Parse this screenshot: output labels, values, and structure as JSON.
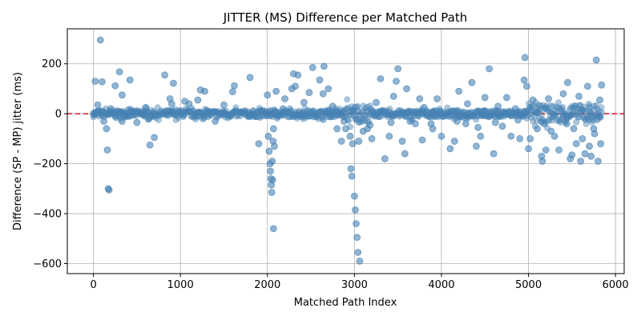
{
  "chart_data": {
    "type": "scatter",
    "title": "JITTER (MS) Difference per Matched Path",
    "xlabel": "Matched Path Index",
    "ylabel": "Difference (SP - MP) jitter (ms)",
    "xlim": [
      -300,
      6100
    ],
    "ylim": [
      -640,
      340
    ],
    "xticks": [
      0,
      1000,
      2000,
      3000,
      4000,
      5000,
      6000
    ],
    "yticks": [
      -600,
      -400,
      -200,
      0,
      200
    ],
    "grid": true,
    "reference_line": {
      "y": 0,
      "style": "dashed",
      "color": "#d62728"
    },
    "point_color": "#4682b4",
    "point_opacity": 0.6,
    "series": [
      {
        "points": [
          [
            80,
            295
          ],
          [
            20,
            130
          ],
          [
            100,
            128
          ],
          [
            300,
            168
          ],
          [
            420,
            135
          ],
          [
            250,
            112
          ],
          [
            330,
            75
          ],
          [
            120,
            -30
          ],
          [
            150,
            -60
          ],
          [
            160,
            -145
          ],
          [
            170,
            -300
          ],
          [
            180,
            -305
          ],
          [
            330,
            -30
          ],
          [
            500,
            -35
          ],
          [
            650,
            -125
          ],
          [
            700,
            -95
          ],
          [
            820,
            155
          ],
          [
            880,
            60
          ],
          [
            920,
            122
          ],
          [
            1050,
            50
          ],
          [
            1200,
            55
          ],
          [
            1230,
            95
          ],
          [
            1280,
            90
          ],
          [
            1600,
            88
          ],
          [
            1620,
            112
          ],
          [
            1800,
            145
          ],
          [
            1900,
            -120
          ],
          [
            2000,
            75
          ],
          [
            2010,
            -90
          ],
          [
            2020,
            -150
          ],
          [
            2030,
            -200
          ],
          [
            2035,
            -230
          ],
          [
            2040,
            -260
          ],
          [
            2045,
            -285
          ],
          [
            2050,
            -315
          ],
          [
            2060,
            -265
          ],
          [
            2055,
            -190
          ],
          [
            2065,
            -110
          ],
          [
            2070,
            -60
          ],
          [
            2080,
            -130
          ],
          [
            2070,
            -460
          ],
          [
            2100,
            90
          ],
          [
            2200,
            60
          ],
          [
            2280,
            100
          ],
          [
            2300,
            160
          ],
          [
            2320,
            110
          ],
          [
            2350,
            155
          ],
          [
            2480,
            85
          ],
          [
            2520,
            185
          ],
          [
            2600,
            135
          ],
          [
            2640,
            80
          ],
          [
            2650,
            190
          ],
          [
            2700,
            100
          ],
          [
            2800,
            -60
          ],
          [
            2850,
            -110
          ],
          [
            2880,
            -30
          ],
          [
            2950,
            -90
          ],
          [
            2960,
            -220
          ],
          [
            2970,
            -250
          ],
          [
            2980,
            -120
          ],
          [
            3000,
            -330
          ],
          [
            3010,
            -385
          ],
          [
            3020,
            -440
          ],
          [
            3030,
            -495
          ],
          [
            3040,
            -555
          ],
          [
            3060,
            -590
          ],
          [
            3050,
            -110
          ],
          [
            3100,
            -70
          ],
          [
            3150,
            -60
          ],
          [
            3200,
            -100
          ],
          [
            3250,
            45
          ],
          [
            3300,
            140
          ],
          [
            3350,
            -180
          ],
          [
            3400,
            -90
          ],
          [
            3450,
            70
          ],
          [
            3480,
            130
          ],
          [
            3500,
            180
          ],
          [
            3550,
            -110
          ],
          [
            3580,
            -160
          ],
          [
            3600,
            100
          ],
          [
            3700,
            -40
          ],
          [
            3750,
            60
          ],
          [
            3780,
            -105
          ],
          [
            3800,
            25
          ],
          [
            3900,
            -60
          ],
          [
            3950,
            60
          ],
          [
            4000,
            -90
          ],
          [
            4100,
            -140
          ],
          [
            4150,
            -110
          ],
          [
            4200,
            90
          ],
          [
            4280,
            -40
          ],
          [
            4300,
            40
          ],
          [
            4350,
            125
          ],
          [
            4400,
            -130
          ],
          [
            4450,
            -90
          ],
          [
            4500,
            65
          ],
          [
            4550,
            180
          ],
          [
            4600,
            -160
          ],
          [
            4650,
            30
          ],
          [
            4700,
            -50
          ],
          [
            4750,
            65
          ],
          [
            4800,
            -90
          ],
          [
            4850,
            20
          ],
          [
            4900,
            -100
          ],
          [
            4950,
            135
          ],
          [
            4960,
            225
          ],
          [
            4980,
            110
          ],
          [
            5000,
            -140
          ],
          [
            5020,
            -100
          ],
          [
            5050,
            55
          ],
          [
            5100,
            -60
          ],
          [
            5150,
            -170
          ],
          [
            5160,
            -190
          ],
          [
            5200,
            -145
          ],
          [
            5230,
            60
          ],
          [
            5300,
            -90
          ],
          [
            5350,
            -145
          ],
          [
            5400,
            80
          ],
          [
            5450,
            125
          ],
          [
            5480,
            -180
          ],
          [
            5500,
            -165
          ],
          [
            5520,
            -60
          ],
          [
            5550,
            -120
          ],
          [
            5580,
            70
          ],
          [
            5600,
            -190
          ],
          [
            5620,
            -100
          ],
          [
            5650,
            -160
          ],
          [
            5680,
            110
          ],
          [
            5700,
            -130
          ],
          [
            5720,
            -170
          ],
          [
            5750,
            -60
          ],
          [
            5780,
            215
          ],
          [
            5800,
            -190
          ],
          [
            5820,
            55
          ],
          [
            5840,
            115
          ],
          [
            5830,
            -120
          ],
          [
            5760,
            -80
          ],
          [
            5440,
            -40
          ],
          [
            5260,
            -70
          ],
          [
            5180,
            -40
          ],
          [
            4880,
            -25
          ],
          [
            4620,
            -35
          ],
          [
            4420,
            -55
          ],
          [
            4180,
            -30
          ],
          [
            3880,
            -40
          ],
          [
            3640,
            -30
          ],
          [
            3420,
            -35
          ],
          [
            3180,
            -45
          ],
          [
            2900,
            -60
          ],
          [
            2750,
            30
          ],
          [
            2420,
            45
          ],
          [
            2180,
            20
          ],
          [
            1500,
            35
          ],
          [
            1400,
            -30
          ],
          [
            1100,
            40
          ],
          [
            900,
            40
          ],
          [
            600,
            25
          ],
          [
            400,
            15
          ],
          [
            200,
            20
          ],
          [
            50,
            35
          ],
          [
            0,
            0
          ],
          [
            300,
            5
          ],
          [
            600,
            -5
          ],
          [
            900,
            10
          ],
          [
            1200,
            -8
          ],
          [
            1500,
            5
          ],
          [
            1800,
            -10
          ],
          [
            2100,
            8
          ],
          [
            2400,
            -5
          ],
          [
            2700,
            10
          ],
          [
            3000,
            -8
          ],
          [
            3300,
            5
          ],
          [
            3600,
            -10
          ],
          [
            3900,
            8
          ],
          [
            4200,
            -5
          ],
          [
            4500,
            10
          ],
          [
            4800,
            -8
          ],
          [
            5100,
            5
          ],
          [
            5400,
            -10
          ],
          [
            5700,
            8
          ]
        ]
      }
    ]
  }
}
